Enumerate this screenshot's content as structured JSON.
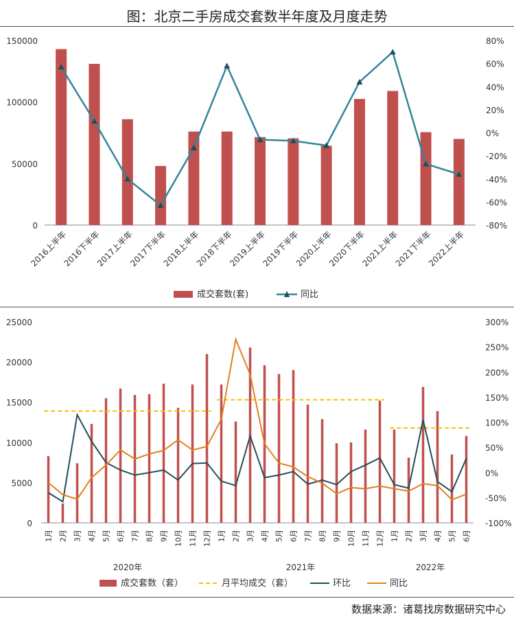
{
  "title": "图：北京二手房成交套数半年度及月度走势",
  "source": "数据来源：诸葛找房数据研究中心",
  "colors": {
    "bar": "#C0504D",
    "line_top": "#31859C",
    "mom": "#254C5A",
    "yoy": "#E08020",
    "avg": "#F2C200",
    "axis": "#666666",
    "text": "#333333"
  },
  "chart_data": [
    {
      "type": "bar",
      "categories": [
        "2016上半年",
        "2016下半年",
        "2017上半年",
        "2017下半年",
        "2018上半年",
        "2018下半年",
        "2019上半年",
        "2019下半年",
        "2020上半年",
        "2020下半年",
        "2021上半年",
        "2021下半年",
        "2022上半年"
      ],
      "y_ticks": [
        "0",
        "50000",
        "100000",
        "150000"
      ],
      "y2_ticks": [
        "-80%",
        "-60%",
        "-40%",
        "-20%",
        "0%",
        "20%",
        "40%",
        "60%",
        "80%"
      ],
      "ylim": [
        0,
        150000
      ],
      "y2lim": [
        -80,
        80
      ],
      "series": [
        {
          "name": "成交套数(套)",
          "type": "bar",
          "values": [
            143000,
            131000,
            86000,
            48000,
            76000,
            76000,
            71500,
            70500,
            64500,
            102500,
            109000,
            75500,
            70000
          ]
        },
        {
          "name": "同比",
          "type": "line",
          "marker": "triangle",
          "values": [
            57,
            10,
            -40,
            -63,
            -13,
            58,
            -6,
            -7,
            -11,
            44,
            70,
            -27,
            -36
          ]
        }
      ],
      "legend": "bottom"
    },
    {
      "type": "bar",
      "categories": [
        "1月",
        "2月",
        "3月",
        "4月",
        "5月",
        "6月",
        "7月",
        "8月",
        "9月",
        "10月",
        "11月",
        "12月",
        "1月",
        "2月",
        "3月",
        "4月",
        "5月",
        "6月",
        "7月",
        "8月",
        "9月",
        "10月",
        "11月",
        "12月",
        "1月",
        "2月",
        "3月",
        "4月",
        "5月",
        "6月"
      ],
      "year_labels": [
        {
          "label": "2020年",
          "start": 0,
          "end": 11
        },
        {
          "label": "2021年",
          "start": 12,
          "end": 23
        },
        {
          "label": "2022年",
          "start": 24,
          "end": 29
        }
      ],
      "y_ticks": [
        "0",
        "5000",
        "10000",
        "15000",
        "20000",
        "25000"
      ],
      "y2_ticks": [
        "-100%",
        "-50%",
        "0%",
        "50%",
        "100%",
        "150%",
        "200%",
        "250%",
        "300%"
      ],
      "ylim": [
        0,
        25000
      ],
      "y2lim": [
        -100,
        300
      ],
      "series": [
        {
          "name": "成交套数（套）",
          "type": "bar",
          "values": [
            8300,
            2400,
            7400,
            12300,
            15500,
            16700,
            15900,
            16000,
            17300,
            14300,
            17200,
            21000,
            17200,
            12600,
            21800,
            19600,
            18500,
            19000,
            14700,
            12900,
            9900,
            10000,
            11600,
            15200,
            11600,
            8100,
            16900,
            13900,
            8500,
            10800
          ]
        },
        {
          "name": "月平均成交（套）",
          "type": "avg",
          "segments": [
            {
              "start": 0,
              "end": 11,
              "value": 13900
            },
            {
              "start": 12,
              "end": 23,
              "value": 15300
            },
            {
              "start": 24,
              "end": 29,
              "value": 11800
            }
          ]
        },
        {
          "name": "环比",
          "type": "line",
          "values": [
            -40,
            -58,
            115,
            62,
            20,
            5,
            -5,
            0,
            5,
            -15,
            18,
            19,
            -17,
            -26,
            73,
            -10,
            -5,
            2,
            -23,
            -15,
            -24,
            2,
            15,
            29,
            -24,
            -31,
            105,
            -18,
            -38,
            28
          ]
        },
        {
          "name": "同比",
          "type": "line",
          "values": [
            -20,
            -44,
            -53,
            -10,
            15,
            45,
            27,
            37,
            44,
            65,
            45,
            52,
            106,
            265,
            195,
            57,
            19,
            11,
            -8,
            -21,
            -42,
            -30,
            -32,
            -27,
            -32,
            -37,
            -22,
            -26,
            -54,
            -43
          ]
        }
      ],
      "legend": "bottom"
    }
  ]
}
